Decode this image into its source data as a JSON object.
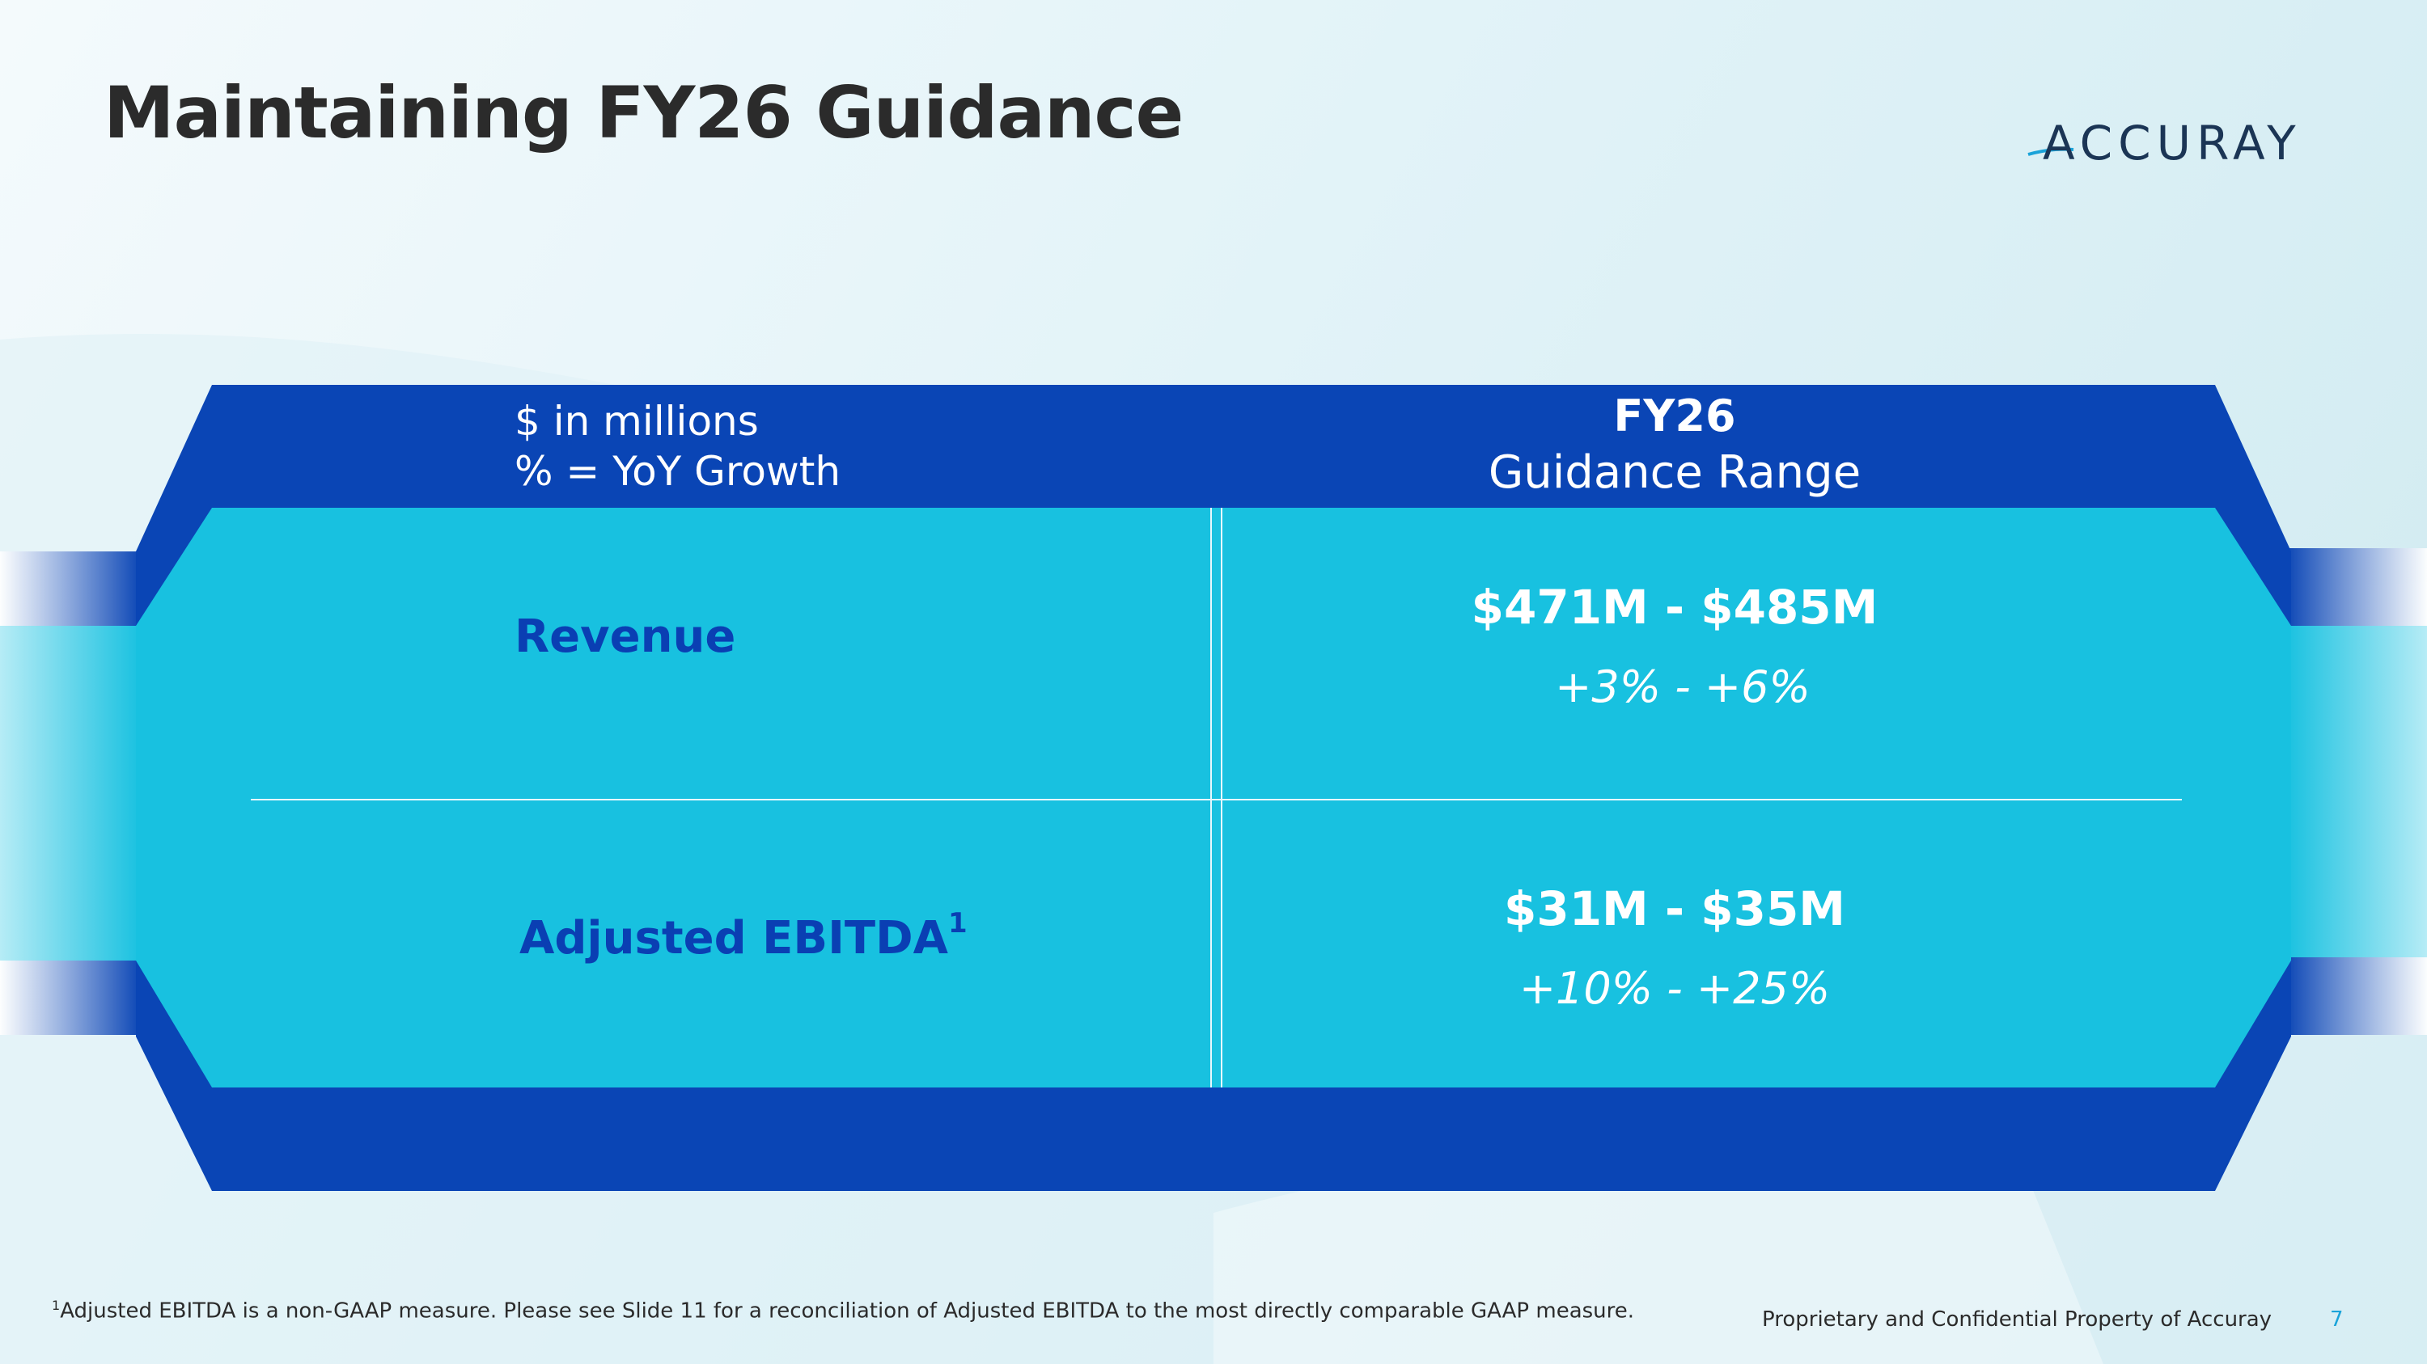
{
  "slide": {
    "title": "Maintaining FY26 Guidance",
    "page_number": "7"
  },
  "logo": {
    "name": "ACCURAY"
  },
  "table": {
    "header_left_line1": "$ in millions",
    "header_left_line2": "% = YoY Growth",
    "header_right_line1": "FY26",
    "header_right_line2": "Guidance  Range",
    "rows": [
      {
        "metric": "Revenue",
        "footnote_marker": "",
        "range": "$471M - $485M",
        "growth": "+3% - +6%"
      },
      {
        "metric": "Adjusted EBITDA",
        "footnote_marker": "1",
        "range": "$31M - $35M",
        "growth": "+10% - +25%"
      }
    ]
  },
  "footer": {
    "footnote_marker": "1",
    "footnote_text": "Adjusted EBITDA is a non-GAAP measure.  Please see Slide 11 for a reconciliation of Adjusted EBITDA to the most directly comparable GAAP measure.",
    "proprietary": "Proprietary and Confidential Property of Accuray"
  },
  "colors": {
    "dark_blue": "#0a45b5",
    "cyan": "#18c1e0",
    "title_text": "#2b2b2b",
    "metric_text": "#0a3fb3",
    "page_number": "#1aa3d9"
  }
}
